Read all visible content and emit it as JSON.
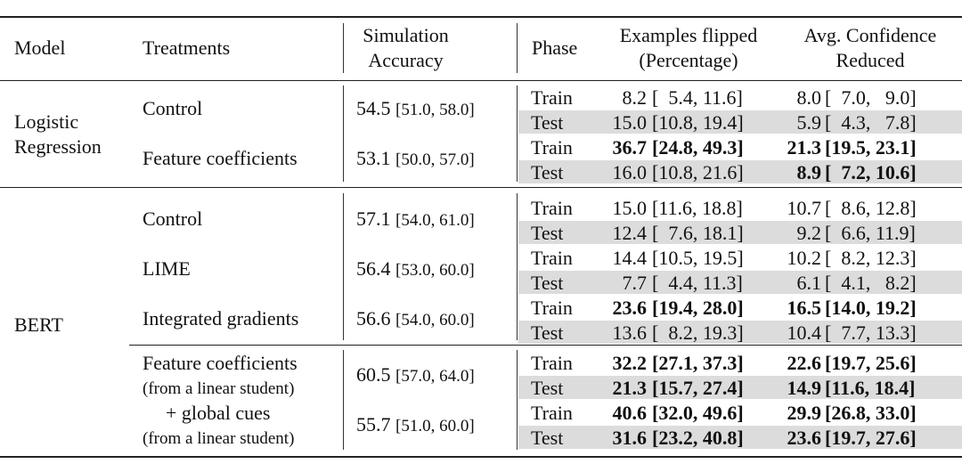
{
  "header": {
    "model": "Model",
    "treatments": "Treatments",
    "sim_line1": "Simulation",
    "sim_line2": "Accuracy",
    "phase": "Phase",
    "flip_line1": "Examples flipped",
    "flip_line2": "(Percentage)",
    "conf_line1": "Avg. Confidence",
    "conf_line2": "Reduced"
  },
  "groups": {
    "lr": {
      "line1": "Logistic",
      "line2": "Regression"
    },
    "bert": {
      "label": "BERT"
    }
  },
  "treatments": {
    "lr_control": "Control",
    "lr_feat": "Feature coefficients",
    "bert_control": "Control",
    "bert_lime": "LIME",
    "bert_ig": "Integrated gradients",
    "bert_fc_line1": "Feature coefficients",
    "bert_fc_line2": "(from a linear student)",
    "bert_gc_line1": "+ global cues",
    "bert_gc_line2": "(from a linear student)"
  },
  "sim": {
    "lr_control": {
      "value": "54.5",
      "ci": "[51.0, 58.0]"
    },
    "lr_feat": {
      "value": "53.1",
      "ci": "[50.0, 57.0]"
    },
    "bert_control": {
      "value": "57.1",
      "ci": "[54.0, 61.0]"
    },
    "bert_lime": {
      "value": "56.4",
      "ci": "[53.0, 60.0]"
    },
    "bert_ig": {
      "value": "56.6",
      "ci": "[54.0, 60.0]"
    },
    "bert_fc": {
      "value": "60.5",
      "ci": "[57.0, 64.0]"
    },
    "bert_gc": {
      "value": "55.7",
      "ci": "[51.0, 60.0]"
    }
  },
  "rows": [
    {
      "phase": "Train",
      "flip": "8.2",
      "flip_ci": "[  5.4, 11.6]",
      "conf": "8.0",
      "conf_ci": "[  7.0,   9.0]"
    },
    {
      "phase": "Test",
      "flip": "15.0",
      "flip_ci": "[10.8, 19.4]",
      "conf": "5.9",
      "conf_ci": "[  4.3,   7.8]"
    },
    {
      "phase": "Train",
      "flip": "36.7",
      "flip_ci": "[24.8, 49.3]",
      "conf": "21.3",
      "conf_ci": "[19.5, 23.1]"
    },
    {
      "phase": "Test",
      "flip": "16.0",
      "flip_ci": "[10.8, 21.6]",
      "conf": "8.9",
      "conf_ci": "[  7.2, 10.6]"
    },
    {
      "phase": "Train",
      "flip": "15.0",
      "flip_ci": "[11.6, 18.8]",
      "conf": "10.7",
      "conf_ci": "[  8.6, 12.8]"
    },
    {
      "phase": "Test",
      "flip": "12.4",
      "flip_ci": "[  7.6, 18.1]",
      "conf": "9.2",
      "conf_ci": "[  6.6, 11.9]"
    },
    {
      "phase": "Train",
      "flip": "14.4",
      "flip_ci": "[10.5, 19.5]",
      "conf": "10.2",
      "conf_ci": "[  8.2, 12.3]"
    },
    {
      "phase": "Test",
      "flip": "7.7",
      "flip_ci": "[  4.4, 11.3]",
      "conf": "6.1",
      "conf_ci": "[  4.1,   8.2]"
    },
    {
      "phase": "Train",
      "flip": "23.6",
      "flip_ci": "[19.4, 28.0]",
      "conf": "16.5",
      "conf_ci": "[14.0, 19.2]"
    },
    {
      "phase": "Test",
      "flip": "13.6",
      "flip_ci": "[  8.2, 19.3]",
      "conf": "10.4",
      "conf_ci": "[  7.7, 13.3]"
    },
    {
      "phase": "Train",
      "flip": "32.2",
      "flip_ci": "[27.1, 37.3]",
      "conf": "22.6",
      "conf_ci": "[19.7, 25.6]"
    },
    {
      "phase": "Test",
      "flip": "21.3",
      "flip_ci": "[15.7, 27.4]",
      "conf": "14.9",
      "conf_ci": "[11.6, 18.4]"
    },
    {
      "phase": "Train",
      "flip": "40.6",
      "flip_ci": "[32.0, 49.6]",
      "conf": "29.9",
      "conf_ci": "[26.8, 33.0]"
    },
    {
      "phase": "Test",
      "flip": "31.6",
      "flip_ci": "[23.2, 40.8]",
      "conf": "23.6",
      "conf_ci": "[19.7, 27.6]"
    }
  ]
}
